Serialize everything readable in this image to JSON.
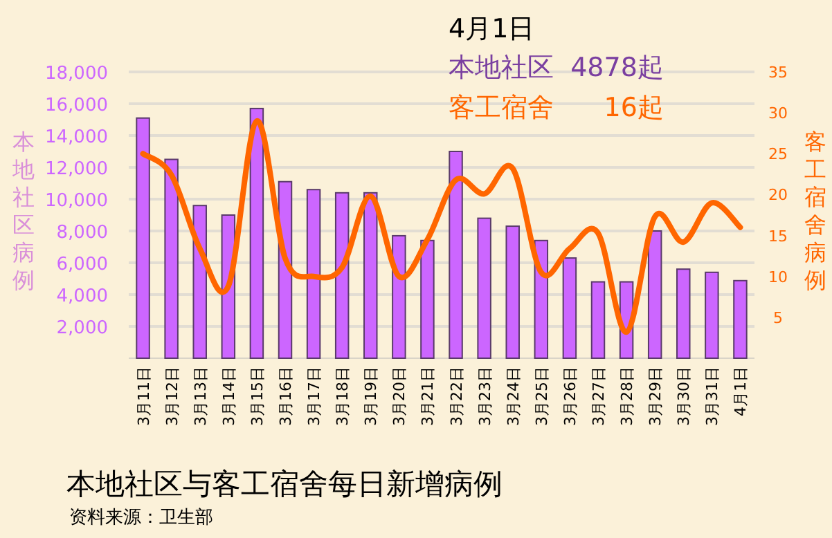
{
  "chart_data": {
    "type": "bar",
    "title": "本地社区与客工宿舍每日新增病例",
    "ylabel": "本地社区病例",
    "y2label": "客工宿舍病例",
    "annotations": [
      "4月1日",
      "本地社区  4878起",
      "客工宿舍      16起",
      "资料来源：卫生部"
    ],
    "categories": [
      "3月11日",
      "3月12日",
      "3月13日",
      "3月14日",
      "3月15日",
      "3月16日",
      "3月17日",
      "3月18日",
      "3月19日",
      "3月20日",
      "3月21日",
      "3月22日",
      "3月23日",
      "3月24日",
      "3月25日",
      "3月26日",
      "3月27日",
      "3月28日",
      "3月29日",
      "3月30日",
      "3月31日",
      "4月1日"
    ],
    "series": [
      {
        "color": "#cc66ff",
        "values": [
          15100,
          12500,
          9600,
          9000,
          15700,
          11100,
          10600,
          10400,
          10400,
          7700,
          7400,
          13000,
          8800,
          8300,
          7400,
          6300,
          4800,
          4800,
          8000,
          5600,
          5400,
          4878
        ]
      },
      {
        "type": "line",
        "axis": "y2",
        "color": "#ff6600",
        "values": [
          25.0,
          22.4,
          13.4,
          8.8,
          29.0,
          12.2,
          10.0,
          11.1,
          19.8,
          10.0,
          14.5,
          21.8,
          20.1,
          23.2,
          10.5,
          13.4,
          15.3,
          3.2,
          17.3,
          14.2,
          19.0,
          16
        ]
      }
    ],
    "ylim": [
      0,
      18000
    ],
    "yticks": [
      {
        "value": 2000,
        "label": "2,000"
      },
      {
        "value": 4000,
        "label": "4,000"
      },
      {
        "value": 6000,
        "label": "6,000"
      },
      {
        "value": 8000,
        "label": "8,000"
      },
      {
        "value": 10000,
        "label": "10,000"
      },
      {
        "value": 12000,
        "label": "12,000"
      },
      {
        "value": 14000,
        "label": "14,000"
      },
      {
        "value": 16000,
        "label": "16,000"
      },
      {
        "value": 18000,
        "label": "18,000"
      }
    ],
    "y2lim": [
      0,
      35
    ],
    "y2ticks": [
      5,
      10,
      15,
      20,
      25,
      30,
      35
    ],
    "grid": "y"
  }
}
